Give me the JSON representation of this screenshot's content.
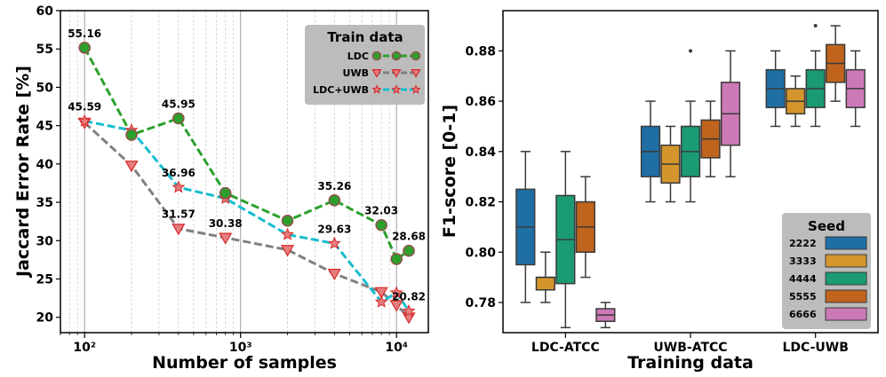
{
  "chart_data": [
    {
      "type": "line",
      "xlabel": "Number of samples",
      "ylabel": "Jaccard Error Rate [%]",
      "xscale": "log",
      "xlim": [
        70,
        16000
      ],
      "ylim": [
        18,
        60
      ],
      "x_tick_labels": [
        "10²",
        "10³",
        "10⁴"
      ],
      "y_ticks": [
        20,
        25,
        30,
        35,
        40,
        45,
        50,
        55,
        60
      ],
      "grid": "x-major-and-minor",
      "legend": {
        "title": "Train data",
        "placement": "top-right",
        "entries": [
          "LDC",
          "UWB",
          "LDC+UWB"
        ]
      },
      "series": [
        {
          "name": "LDC",
          "color": "#2ca02c",
          "marker": "circle",
          "marker_color": "#8c564b",
          "x": [
            100,
            200,
            400,
            800,
            2000,
            4000,
            8000,
            10000,
            12000
          ],
          "y": [
            55.16,
            43.8,
            45.95,
            36.2,
            32.6,
            35.26,
            32.03,
            27.6,
            28.68
          ]
        },
        {
          "name": "UWB",
          "color": "#808080",
          "marker": "triangle-down",
          "marker_color": "#d62728",
          "x": [
            100,
            200,
            400,
            800,
            2000,
            4000,
            8000,
            10000,
            12000
          ],
          "y": [
            45.4,
            39.8,
            31.57,
            30.38,
            28.8,
            25.7,
            23.3,
            21.6,
            20.0
          ]
        },
        {
          "name": "LDC+UWB",
          "color": "#17becf",
          "marker": "star",
          "marker_color": "#d62728",
          "x": [
            100,
            200,
            400,
            800,
            2000,
            4000,
            8000,
            10000,
            12000
          ],
          "y": [
            45.59,
            44.4,
            36.96,
            35.5,
            30.8,
            29.63,
            22.0,
            23.2,
            20.82
          ]
        }
      ],
      "annotations": [
        {
          "x": 100,
          "y": 55.16,
          "text": "55.16"
        },
        {
          "x": 100,
          "y": 45.59,
          "text": "45.59"
        },
        {
          "x": 400,
          "y": 45.95,
          "text": "45.95"
        },
        {
          "x": 400,
          "y": 36.96,
          "text": "36.96"
        },
        {
          "x": 400,
          "y": 31.57,
          "text": "31.57"
        },
        {
          "x": 800,
          "y": 30.38,
          "text": "30.38"
        },
        {
          "x": 4000,
          "y": 35.26,
          "text": "35.26"
        },
        {
          "x": 4000,
          "y": 29.63,
          "text": "29.63"
        },
        {
          "x": 8000,
          "y": 32.03,
          "text": "32.03"
        },
        {
          "x": 12000,
          "y": 28.68,
          "text": "28.68"
        },
        {
          "x": 12000,
          "y": 20.82,
          "text": "20.82"
        }
      ]
    },
    {
      "type": "box",
      "xlabel": "Training data",
      "ylabel": "F1-score [0-1]",
      "categories": [
        "LDC-ATCC",
        "UWB-ATCC",
        "LDC-UWB"
      ],
      "ylim": [
        0.768,
        0.896
      ],
      "y_ticks": [
        0.78,
        0.8,
        0.82,
        0.84,
        0.86,
        0.88
      ],
      "grid": "none",
      "legend": {
        "title": "Seed",
        "placement": "bottom-right",
        "entries": [
          "2222",
          "3333",
          "4444",
          "5555",
          "6666"
        ]
      },
      "series": [
        {
          "name": "2222",
          "color": "#1f6fa5",
          "boxes": [
            {
              "min": 0.78,
              "q1": 0.795,
              "median": 0.81,
              "q3": 0.825,
              "max": 0.84,
              "outliers": []
            },
            {
              "min": 0.82,
              "q1": 0.83,
              "median": 0.84,
              "q3": 0.85,
              "max": 0.86,
              "outliers": []
            },
            {
              "min": 0.85,
              "q1": 0.8575,
              "median": 0.865,
              "q3": 0.8725,
              "max": 0.88,
              "outliers": []
            }
          ]
        },
        {
          "name": "3333",
          "color": "#d4962c",
          "boxes": [
            {
              "min": 0.78,
              "q1": 0.785,
              "median": 0.79,
              "q3": 0.79,
              "max": 0.8,
              "outliers": []
            },
            {
              "min": 0.82,
              "q1": 0.8275,
              "median": 0.835,
              "q3": 0.8425,
              "max": 0.85,
              "outliers": []
            },
            {
              "min": 0.85,
              "q1": 0.855,
              "median": 0.86,
              "q3": 0.865,
              "max": 0.87,
              "outliers": []
            }
          ]
        },
        {
          "name": "4444",
          "color": "#1a9b73",
          "boxes": [
            {
              "min": 0.77,
              "q1": 0.7875,
              "median": 0.805,
              "q3": 0.8225,
              "max": 0.84,
              "outliers": []
            },
            {
              "min": 0.82,
              "q1": 0.83,
              "median": 0.84,
              "q3": 0.85,
              "max": 0.86,
              "outliers": [
                0.88
              ]
            },
            {
              "min": 0.85,
              "q1": 0.8575,
              "median": 0.865,
              "q3": 0.8725,
              "max": 0.88,
              "outliers": [
                0.89
              ]
            }
          ]
        },
        {
          "name": "5555",
          "color": "#c0631c",
          "boxes": [
            {
              "min": 0.79,
              "q1": 0.8,
              "median": 0.81,
              "q3": 0.82,
              "max": 0.83,
              "outliers": []
            },
            {
              "min": 0.83,
              "q1": 0.8375,
              "median": 0.845,
              "q3": 0.8525,
              "max": 0.86,
              "outliers": []
            },
            {
              "min": 0.86,
              "q1": 0.8675,
              "median": 0.875,
              "q3": 0.8825,
              "max": 0.89,
              "outliers": []
            }
          ]
        },
        {
          "name": "6666",
          "color": "#cc79b7",
          "boxes": [
            {
              "min": 0.77,
              "q1": 0.7725,
              "median": 0.775,
              "q3": 0.7775,
              "max": 0.78,
              "outliers": []
            },
            {
              "min": 0.83,
              "q1": 0.8425,
              "median": 0.855,
              "q3": 0.8675,
              "max": 0.88,
              "outliers": []
            },
            {
              "min": 0.85,
              "q1": 0.8575,
              "median": 0.865,
              "q3": 0.8725,
              "max": 0.88,
              "outliers": []
            }
          ]
        }
      ]
    }
  ]
}
